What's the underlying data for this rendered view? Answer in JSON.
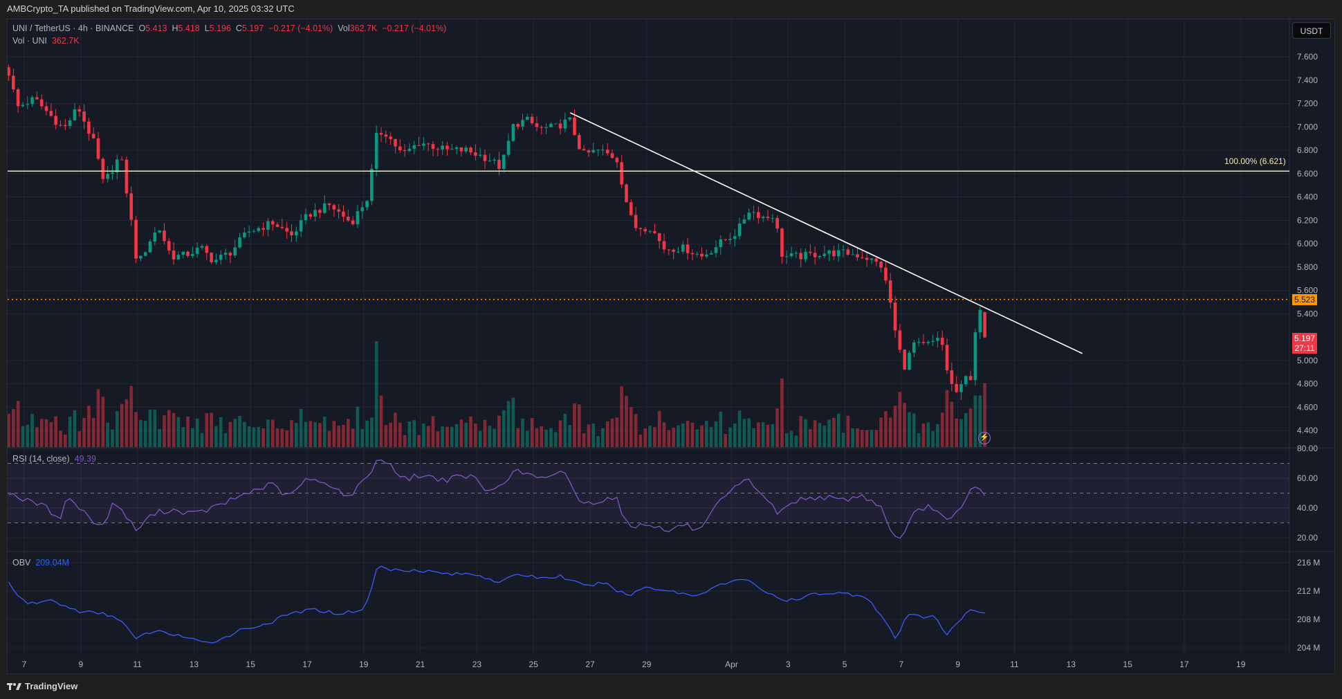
{
  "header": {
    "published": "AMBCrypto_TA published on TradingView.com, Apr 10, 2025 03:32 UTC"
  },
  "legend": {
    "symbol": "UNI / TetherUS · 4h · BINANCE",
    "o_label": "O",
    "o": "5.413",
    "h_label": "H",
    "h": "5.418",
    "l_label": "L",
    "l": "5.196",
    "c_label": "C",
    "c": "5.197",
    "change": "−0.217 (−4.01%)",
    "vol_label": "Vol",
    "vol": "362.7K",
    "vol_change": "−0.217 (−4.01%)",
    "vol_line_label": "Vol · UNI",
    "vol_line_value": "362.7K"
  },
  "rsi": {
    "label": "RSI (14, close)",
    "value": "49.39"
  },
  "obv": {
    "label": "OBV",
    "value": "209.04M"
  },
  "currency_button": "USDT",
  "fib_label": "100.00% (6.621)",
  "price_labels": {
    "level": "5.523",
    "last": "5.197",
    "countdown": "27:11"
  },
  "footer": {
    "brand": "TradingView"
  },
  "colors": {
    "up": "#089981",
    "down": "#f23645",
    "level": "#ff9800",
    "fib": "#f5eaa5",
    "rsi": "#7e57c2",
    "obv": "#3d5afe",
    "trendline": "#ffffff"
  },
  "chart_data": {
    "type": "candlestick",
    "timeframe": "4h",
    "time_unit": "day of March 2025 (32 = Apr 1)",
    "price_axis": {
      "ticks": [
        "7.600",
        "7.400",
        "7.200",
        "7.000",
        "6.800",
        "6.600",
        "6.400",
        "6.200",
        "6.000",
        "5.800",
        "5.600",
        "5.400",
        "5.000",
        "4.800",
        "4.600",
        "4.400"
      ],
      "range": [
        4.25,
        7.75
      ]
    },
    "rsi_axis": {
      "ticks": [
        "80.00",
        "60.00",
        "40.00",
        "20.00"
      ],
      "bands": [
        70,
        50,
        30
      ]
    },
    "obv_axis": {
      "ticks": [
        "216 M",
        "212 M",
        "208 M",
        "204 M"
      ]
    },
    "x_ticks": [
      {
        "t": 7,
        "label": "7"
      },
      {
        "t": 9,
        "label": "9"
      },
      {
        "t": 11,
        "label": "11"
      },
      {
        "t": 13,
        "label": "13"
      },
      {
        "t": 15,
        "label": "15"
      },
      {
        "t": 17,
        "label": "17"
      },
      {
        "t": 19,
        "label": "19"
      },
      {
        "t": 21,
        "label": "21"
      },
      {
        "t": 23,
        "label": "23"
      },
      {
        "t": 25,
        "label": "25"
      },
      {
        "t": 27,
        "label": "27"
      },
      {
        "t": 29,
        "label": "29"
      },
      {
        "t": 32,
        "label": "Apr"
      },
      {
        "t": 34,
        "label": "3"
      },
      {
        "t": 36,
        "label": "5"
      },
      {
        "t": 38,
        "label": "7"
      },
      {
        "t": 40,
        "label": "9"
      },
      {
        "t": 42,
        "label": "11"
      },
      {
        "t": 44,
        "label": "13"
      },
      {
        "t": 46,
        "label": "15"
      },
      {
        "t": 48,
        "label": "17"
      },
      {
        "t": 50,
        "label": "19"
      }
    ],
    "price_path": [
      [
        6.45,
        7.46
      ],
      [
        6.76,
        7.17
      ],
      [
        7.36,
        7.24
      ],
      [
        8.4,
        6.98
      ],
      [
        8.9,
        7.17
      ],
      [
        9.5,
        6.84
      ],
      [
        9.8,
        6.51
      ],
      [
        10.4,
        6.76
      ],
      [
        10.7,
        6.33
      ],
      [
        11.0,
        5.81
      ],
      [
        11.45,
        6.03
      ],
      [
        11.75,
        6.14
      ],
      [
        12.2,
        5.89
      ],
      [
        12.66,
        5.9
      ],
      [
        13.26,
        5.96
      ],
      [
        13.7,
        5.85
      ],
      [
        14.3,
        5.93
      ],
      [
        14.9,
        6.1
      ],
      [
        15.8,
        6.18
      ],
      [
        16.45,
        6.07
      ],
      [
        17.05,
        6.25
      ],
      [
        17.8,
        6.33
      ],
      [
        18.56,
        6.18
      ],
      [
        19.16,
        6.4
      ],
      [
        19.47,
        6.95
      ],
      [
        19.77,
        6.95
      ],
      [
        20.37,
        6.76
      ],
      [
        20.98,
        6.87
      ],
      [
        21.9,
        6.8
      ],
      [
        22.6,
        6.8
      ],
      [
        23.4,
        6.73
      ],
      [
        23.85,
        6.65
      ],
      [
        24.3,
        7.02
      ],
      [
        24.76,
        7.06
      ],
      [
        25.2,
        6.98
      ],
      [
        25.8,
        7.0
      ],
      [
        26.27,
        7.06
      ],
      [
        26.73,
        6.76
      ],
      [
        27.33,
        6.8
      ],
      [
        27.94,
        6.73
      ],
      [
        28.24,
        6.4
      ],
      [
        28.54,
        6.14
      ],
      [
        29.15,
        6.14
      ],
      [
        29.6,
        5.96
      ],
      [
        30.36,
        5.96
      ],
      [
        30.96,
        5.89
      ],
      [
        31.57,
        6.0
      ],
      [
        32.2,
        6.1
      ],
      [
        32.6,
        6.29
      ],
      [
        33.2,
        6.22
      ],
      [
        33.5,
        6.25
      ],
      [
        33.8,
        5.89
      ],
      [
        34.4,
        5.89
      ],
      [
        35.2,
        5.92
      ],
      [
        36.1,
        5.92
      ],
      [
        36.7,
        5.89
      ],
      [
        37.3,
        5.81
      ],
      [
        37.6,
        5.52
      ],
      [
        37.85,
        5.15
      ],
      [
        38.15,
        4.93
      ],
      [
        38.4,
        5.15
      ],
      [
        38.7,
        5.12
      ],
      [
        39.1,
        5.15
      ],
      [
        39.4,
        5.19
      ],
      [
        39.7,
        4.82
      ],
      [
        40.0,
        4.71
      ],
      [
        40.3,
        4.86
      ],
      [
        40.5,
        4.86
      ],
      [
        40.65,
        5.37
      ],
      [
        40.8,
        5.41
      ],
      [
        41.0,
        5.197
      ]
    ],
    "last_candle": {
      "open": 5.413,
      "high": 5.418,
      "low": 5.196,
      "close": 5.197
    },
    "volume_spikes_k": [
      [
        10.5,
        470
      ],
      [
        10.67,
        520
      ],
      [
        11.0,
        380
      ],
      [
        19.33,
        320
      ],
      [
        19.5,
        1150
      ],
      [
        19.67,
        560
      ],
      [
        37.67,
        320
      ],
      [
        37.83,
        450
      ],
      [
        38.0,
        600
      ],
      [
        38.17,
        480
      ],
      [
        38.33,
        380
      ],
      [
        40.5,
        420
      ],
      [
        40.67,
        560
      ]
    ],
    "horizontal_levels": [
      {
        "price": 6.621,
        "label": "100.00% (6.621)",
        "style": "solid"
      },
      {
        "price": 5.523,
        "style": "dotted"
      }
    ],
    "trendline": [
      [
        26.3,
        7.12
      ],
      [
        44.4,
        5.06
      ]
    ],
    "rsi_path": [
      [
        6.45,
        50.6
      ],
      [
        7.05,
        45
      ],
      [
        7.65,
        42
      ],
      [
        8.25,
        33
      ],
      [
        8.55,
        48
      ],
      [
        9.15,
        36
      ],
      [
        9.75,
        27
      ],
      [
        10.2,
        45
      ],
      [
        10.95,
        25
      ],
      [
        11.55,
        36
      ],
      [
        12.15,
        39
      ],
      [
        13.05,
        36
      ],
      [
        13.95,
        42
      ],
      [
        14.85,
        50
      ],
      [
        15.75,
        56
      ],
      [
        16.35,
        47
      ],
      [
        16.95,
        59
      ],
      [
        17.85,
        56
      ],
      [
        18.45,
        47
      ],
      [
        19.05,
        59
      ],
      [
        19.47,
        72
      ],
      [
        19.9,
        71
      ],
      [
        20.37,
        59
      ],
      [
        20.98,
        62
      ],
      [
        21.9,
        59
      ],
      [
        22.8,
        62
      ],
      [
        23.4,
        50
      ],
      [
        24.0,
        59
      ],
      [
        24.45,
        65
      ],
      [
        24.9,
        62
      ],
      [
        25.5,
        59
      ],
      [
        26.1,
        65
      ],
      [
        26.7,
        42
      ],
      [
        27.3,
        45
      ],
      [
        27.9,
        48
      ],
      [
        28.35,
        27
      ],
      [
        29.1,
        30
      ],
      [
        29.7,
        24
      ],
      [
        30.3,
        29
      ],
      [
        30.9,
        24
      ],
      [
        31.5,
        42
      ],
      [
        32.1,
        53
      ],
      [
        32.6,
        59
      ],
      [
        33.2,
        47
      ],
      [
        33.65,
        36
      ],
      [
        34.25,
        45
      ],
      [
        35.15,
        48
      ],
      [
        35.75,
        45
      ],
      [
        36.65,
        48
      ],
      [
        37.25,
        42
      ],
      [
        37.55,
        27
      ],
      [
        38.0,
        18
      ],
      [
        38.45,
        36
      ],
      [
        39.05,
        42
      ],
      [
        39.35,
        36
      ],
      [
        39.65,
        30
      ],
      [
        40.1,
        39
      ],
      [
        40.55,
        55
      ],
      [
        41.0,
        49.39
      ]
    ],
    "obv_path_m": [
      [
        6.45,
        213.2
      ],
      [
        7.05,
        210.1
      ],
      [
        7.95,
        210.7
      ],
      [
        8.85,
        209.2
      ],
      [
        9.75,
        208.8
      ],
      [
        10.35,
        208.2
      ],
      [
        10.95,
        205.2
      ],
      [
        11.55,
        206.4
      ],
      [
        12.45,
        205.8
      ],
      [
        13.35,
        204.6
      ],
      [
        13.95,
        205.2
      ],
      [
        14.55,
        206.4
      ],
      [
        15.15,
        207.0
      ],
      [
        15.75,
        207.6
      ],
      [
        16.35,
        208.8
      ],
      [
        17.25,
        209.4
      ],
      [
        18.15,
        208.8
      ],
      [
        19.05,
        209.5
      ],
      [
        19.5,
        215.6
      ],
      [
        19.95,
        215.0
      ],
      [
        20.85,
        215.0
      ],
      [
        22.05,
        214.4
      ],
      [
        22.95,
        214.4
      ],
      [
        23.85,
        213.2
      ],
      [
        24.45,
        214.4
      ],
      [
        25.35,
        213.8
      ],
      [
        25.95,
        214.1
      ],
      [
        26.85,
        212.6
      ],
      [
        27.45,
        213.2
      ],
      [
        28.35,
        211.3
      ],
      [
        28.95,
        212.6
      ],
      [
        29.85,
        212.0
      ],
      [
        30.75,
        211.3
      ],
      [
        31.35,
        212.6
      ],
      [
        31.95,
        213.2
      ],
      [
        32.55,
        213.8
      ],
      [
        33.15,
        212.0
      ],
      [
        33.75,
        210.7
      ],
      [
        34.35,
        210.7
      ],
      [
        34.95,
        211.7
      ],
      [
        35.85,
        211.7
      ],
      [
        36.75,
        211.3
      ],
      [
        37.35,
        208.2
      ],
      [
        37.8,
        205.2
      ],
      [
        38.25,
        208.8
      ],
      [
        38.85,
        208.2
      ],
      [
        39.15,
        208.8
      ],
      [
        39.6,
        205.8
      ],
      [
        39.9,
        207.0
      ],
      [
        40.35,
        209.2
      ],
      [
        41.0,
        209.04
      ]
    ]
  }
}
